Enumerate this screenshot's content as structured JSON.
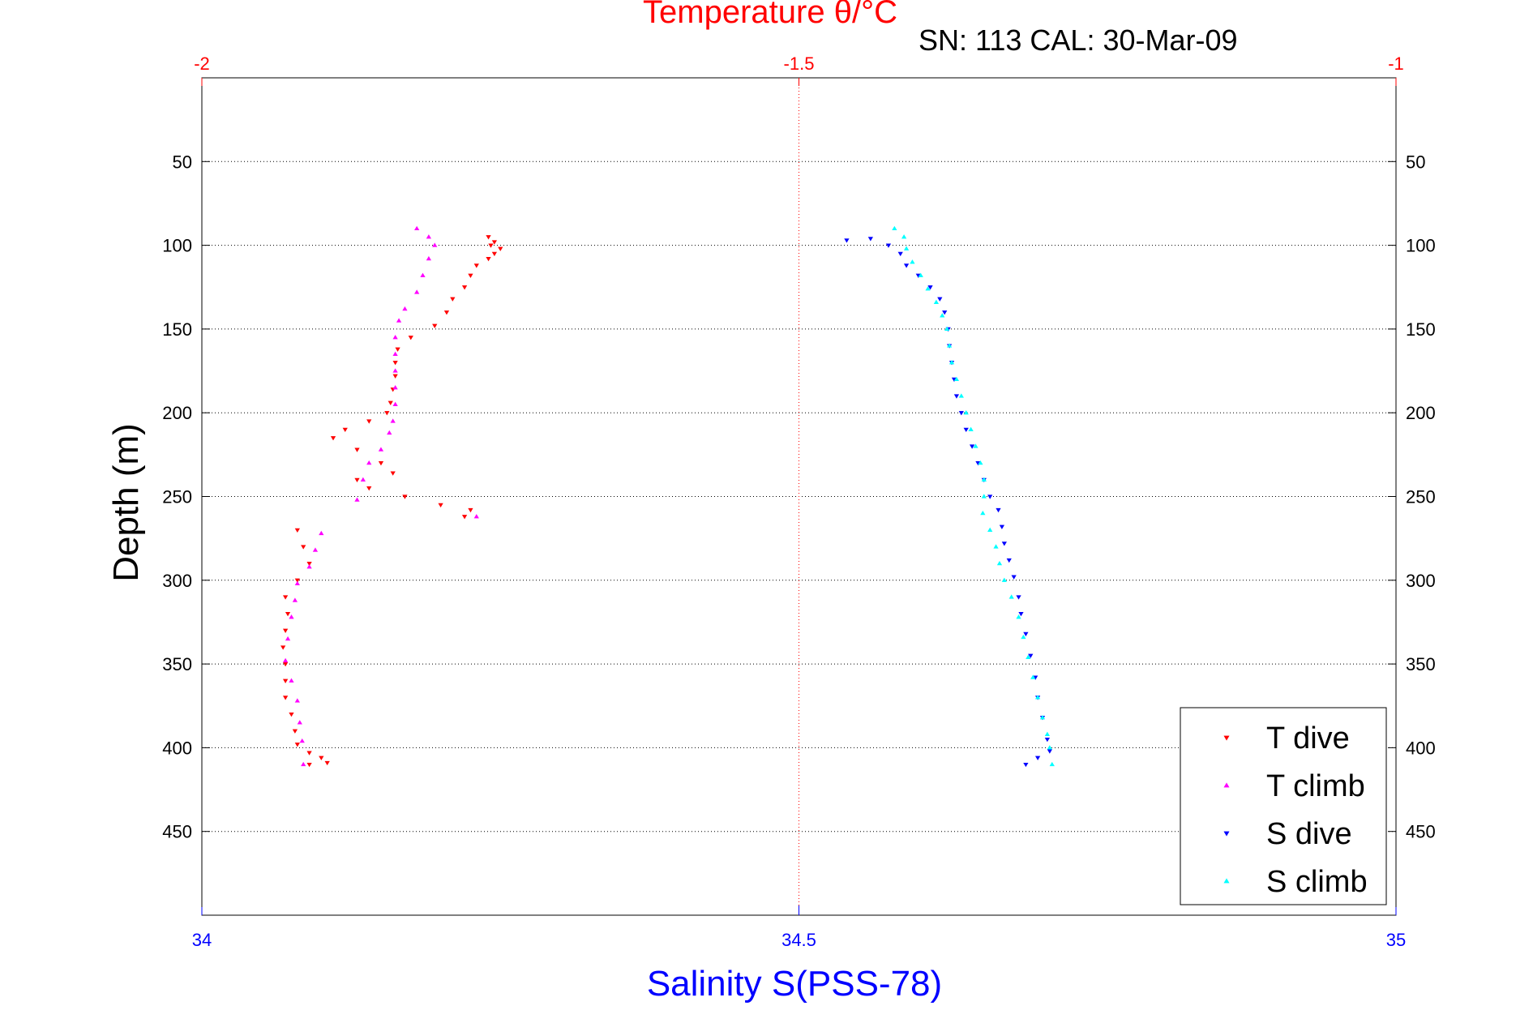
{
  "chart_data": {
    "type": "scatter",
    "title": "Temperature θ/°C",
    "subtitle": "SN: 113  CAL: 30-Mar-09",
    "xlabel": "Salinity S(PSS-78)",
    "ylabel": "Depth (m)",
    "x_bottom": {
      "label": "Salinity S(PSS-78)",
      "lim": [
        34,
        35
      ],
      "ticks": [
        "34",
        "34.5",
        "35"
      ],
      "color": "#0000ff"
    },
    "x_top": {
      "label": "Temperature θ/°C",
      "lim": [
        -2,
        -1
      ],
      "ticks": [
        "-2",
        "-1.5",
        "-1"
      ],
      "color": "#ff0000"
    },
    "ylim": [
      0,
      500
    ],
    "y_reversed": true,
    "y_ticks": [
      "50",
      "100",
      "150",
      "200",
      "250",
      "300",
      "350",
      "400",
      "450"
    ],
    "grid": "horizontal dotted at y ticks, vertical dotted at center",
    "legend_position": "bottom-right",
    "series": [
      {
        "name": "T dive",
        "color": "#ff0000",
        "marker": "triangle-down",
        "axis": "top",
        "points": [
          [
            -1.76,
            95
          ],
          [
            -1.755,
            98
          ],
          [
            -1.758,
            100
          ],
          [
            -1.75,
            102
          ],
          [
            -1.755,
            105
          ],
          [
            -1.76,
            108
          ],
          [
            -1.77,
            112
          ],
          [
            -1.775,
            118
          ],
          [
            -1.78,
            125
          ],
          [
            -1.79,
            132
          ],
          [
            -1.795,
            140
          ],
          [
            -1.805,
            148
          ],
          [
            -1.825,
            155
          ],
          [
            -1.836,
            162
          ],
          [
            -1.838,
            170
          ],
          [
            -1.838,
            178
          ],
          [
            -1.84,
            186
          ],
          [
            -1.842,
            194
          ],
          [
            -1.845,
            200
          ],
          [
            -1.86,
            205
          ],
          [
            -1.88,
            210
          ],
          [
            -1.89,
            215
          ],
          [
            -1.87,
            222
          ],
          [
            -1.85,
            230
          ],
          [
            -1.84,
            236
          ],
          [
            -1.87,
            240
          ],
          [
            -1.86,
            245
          ],
          [
            -1.83,
            250
          ],
          [
            -1.8,
            255
          ],
          [
            -1.775,
            258
          ],
          [
            -1.78,
            262
          ],
          [
            -1.92,
            270
          ],
          [
            -1.915,
            280
          ],
          [
            -1.91,
            290
          ],
          [
            -1.92,
            300
          ],
          [
            -1.93,
            310
          ],
          [
            -1.928,
            320
          ],
          [
            -1.93,
            330
          ],
          [
            -1.932,
            340
          ],
          [
            -1.93,
            350
          ],
          [
            -1.93,
            360
          ],
          [
            -1.93,
            370
          ],
          [
            -1.925,
            380
          ],
          [
            -1.922,
            390
          ],
          [
            -1.92,
            398
          ],
          [
            -1.91,
            403
          ],
          [
            -1.9,
            406
          ],
          [
            -1.895,
            409
          ],
          [
            -1.91,
            410
          ]
        ]
      },
      {
        "name": "T climb",
        "color": "#ff00ff",
        "marker": "triangle-up",
        "axis": "top",
        "points": [
          [
            -1.82,
            90
          ],
          [
            -1.81,
            95
          ],
          [
            -1.805,
            100
          ],
          [
            -1.81,
            108
          ],
          [
            -1.815,
            118
          ],
          [
            -1.82,
            128
          ],
          [
            -1.83,
            138
          ],
          [
            -1.835,
            145
          ],
          [
            -1.838,
            155
          ],
          [
            -1.838,
            165
          ],
          [
            -1.838,
            175
          ],
          [
            -1.838,
            185
          ],
          [
            -1.838,
            195
          ],
          [
            -1.84,
            205
          ],
          [
            -1.843,
            212
          ],
          [
            -1.85,
            222
          ],
          [
            -1.86,
            230
          ],
          [
            -1.865,
            240
          ],
          [
            -1.87,
            252
          ],
          [
            -1.77,
            262
          ],
          [
            -1.9,
            272
          ],
          [
            -1.905,
            282
          ],
          [
            -1.91,
            292
          ],
          [
            -1.92,
            302
          ],
          [
            -1.922,
            312
          ],
          [
            -1.925,
            322
          ],
          [
            -1.928,
            335
          ],
          [
            -1.93,
            348
          ],
          [
            -1.925,
            360
          ],
          [
            -1.92,
            372
          ],
          [
            -1.918,
            385
          ],
          [
            -1.916,
            396
          ],
          [
            -1.915,
            410
          ]
        ]
      },
      {
        "name": "S dive",
        "color": "#0000ff",
        "marker": "triangle-down",
        "axis": "bottom",
        "points": [
          [
            34.54,
            97
          ],
          [
            34.56,
            96
          ],
          [
            34.575,
            100
          ],
          [
            34.585,
            105
          ],
          [
            34.59,
            112
          ],
          [
            34.6,
            118
          ],
          [
            34.61,
            125
          ],
          [
            34.618,
            132
          ],
          [
            34.622,
            140
          ],
          [
            34.625,
            150
          ],
          [
            34.626,
            160
          ],
          [
            34.628,
            170
          ],
          [
            34.63,
            180
          ],
          [
            34.632,
            190
          ],
          [
            34.636,
            200
          ],
          [
            34.64,
            210
          ],
          [
            34.645,
            220
          ],
          [
            34.65,
            230
          ],
          [
            34.655,
            240
          ],
          [
            34.66,
            250
          ],
          [
            34.667,
            258
          ],
          [
            34.67,
            268
          ],
          [
            34.672,
            278
          ],
          [
            34.676,
            288
          ],
          [
            34.68,
            298
          ],
          [
            34.684,
            310
          ],
          [
            34.686,
            320
          ],
          [
            34.69,
            332
          ],
          [
            34.694,
            345
          ],
          [
            34.698,
            358
          ],
          [
            34.7,
            370
          ],
          [
            34.704,
            382
          ],
          [
            34.708,
            395
          ],
          [
            34.71,
            402
          ],
          [
            34.7,
            406
          ],
          [
            34.69,
            410
          ]
        ]
      },
      {
        "name": "S climb",
        "color": "#00ffff",
        "marker": "triangle-up",
        "axis": "bottom",
        "points": [
          [
            34.58,
            90
          ],
          [
            34.588,
            95
          ],
          [
            34.59,
            102
          ],
          [
            34.595,
            110
          ],
          [
            34.602,
            118
          ],
          [
            34.608,
            126
          ],
          [
            34.615,
            134
          ],
          [
            34.62,
            142
          ],
          [
            34.624,
            150
          ],
          [
            34.626,
            160
          ],
          [
            34.628,
            170
          ],
          [
            34.632,
            180
          ],
          [
            34.636,
            190
          ],
          [
            34.64,
            200
          ],
          [
            34.644,
            210
          ],
          [
            34.648,
            220
          ],
          [
            34.652,
            230
          ],
          [
            34.655,
            240
          ],
          [
            34.655,
            250
          ],
          [
            34.654,
            260
          ],
          [
            34.66,
            270
          ],
          [
            34.665,
            280
          ],
          [
            34.668,
            290
          ],
          [
            34.672,
            300
          ],
          [
            34.678,
            310
          ],
          [
            34.684,
            322
          ],
          [
            34.688,
            334
          ],
          [
            34.692,
            346
          ],
          [
            34.696,
            358
          ],
          [
            34.7,
            370
          ],
          [
            34.704,
            382
          ],
          [
            34.708,
            392
          ],
          [
            34.71,
            400
          ],
          [
            34.712,
            410
          ]
        ]
      }
    ]
  }
}
